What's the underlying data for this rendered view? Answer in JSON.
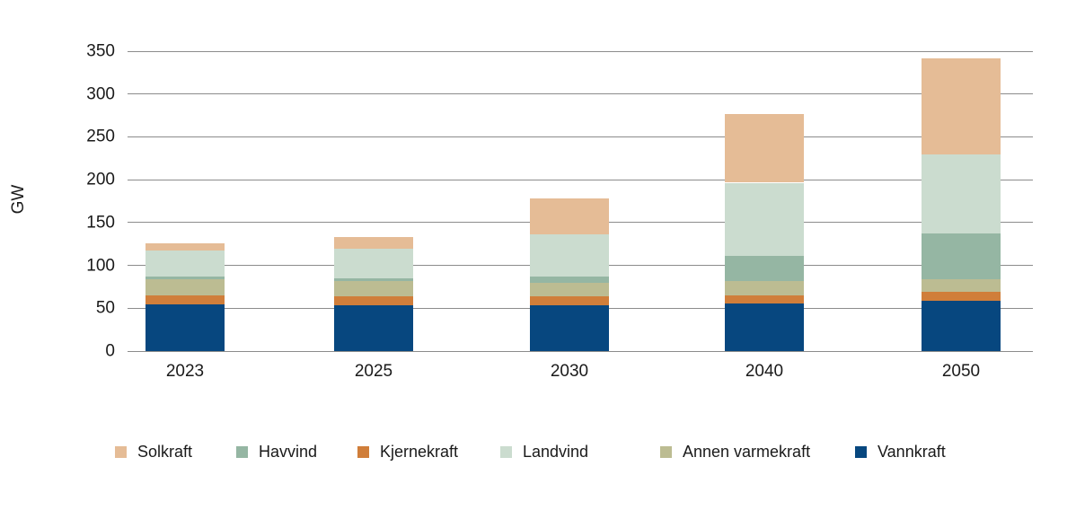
{
  "chart_data": {
    "type": "bar",
    "stacked": true,
    "title": "",
    "ylabel": "GW",
    "ylim": [
      0,
      350
    ],
    "ytick_step": 50,
    "grid": true,
    "legend_position": "bottom",
    "categories": [
      "2023",
      "2025",
      "2030",
      "2040",
      "2050"
    ],
    "series": [
      {
        "name": "Vannkraft",
        "color": "#07477F",
        "values": [
          54,
          53.5,
          53,
          56,
          58.5
        ]
      },
      {
        "name": "Kjernekraft",
        "color": "#D07E3A",
        "values": [
          10.5,
          10.5,
          10.5,
          9.5,
          11
        ]
      },
      {
        "name": "Annen varmekraft",
        "color": "#BCBC92",
        "values": [
          19.5,
          18,
          16.5,
          16.5,
          14.5
        ]
      },
      {
        "name": "Havvind",
        "color": "#95B6A3",
        "values": [
          2.5,
          3,
          7.5,
          29.5,
          53.5
        ]
      },
      {
        "name": "Landvind",
        "color": "#CBDCCF",
        "values": [
          31,
          35,
          49,
          85,
          92.5
        ]
      },
      {
        "name": "Solkraft",
        "color": "#E5BC96",
        "values": [
          8,
          13.5,
          41.5,
          80,
          112
        ]
      }
    ],
    "totals": [
      125.5,
      133.5,
      178,
      276.5,
      342
    ],
    "legend_order": [
      "Solkraft",
      "Havvind",
      "Kjernekraft",
      "Landvind",
      "Annen varmekraft",
      "Vannkraft"
    ]
  }
}
